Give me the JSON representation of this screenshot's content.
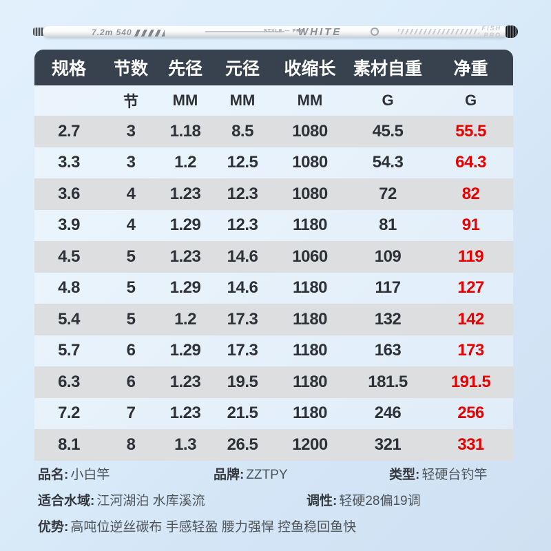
{
  "rod": {
    "left_mark": "7.2m 540",
    "mid_mark": "STYLE — PRO",
    "white_logo": "WHITE",
    "fish": "FISH",
    "pro": "PRO"
  },
  "table": {
    "headers": [
      "规格",
      "节数",
      "先径",
      "元径",
      "收缩长",
      "素材自重",
      "净重"
    ],
    "units": [
      "",
      "节",
      "MM",
      "MM",
      "MM",
      "G",
      "G"
    ],
    "rows": [
      [
        "2.7",
        "3",
        "1.18",
        "8.5",
        "1080",
        "45.5",
        "55.5"
      ],
      [
        "3.3",
        "3",
        "1.2",
        "12.5",
        "1080",
        "54.3",
        "64.3"
      ],
      [
        "3.6",
        "4",
        "1.23",
        "12.3",
        "1080",
        "72",
        "82"
      ],
      [
        "3.9",
        "4",
        "1.29",
        "12.3",
        "1180",
        "81",
        "91"
      ],
      [
        "4.5",
        "5",
        "1.23",
        "14.6",
        "1060",
        "109",
        "119"
      ],
      [
        "4.8",
        "5",
        "1.29",
        "14.6",
        "1180",
        "117",
        "127"
      ],
      [
        "5.4",
        "5",
        "1.2",
        "17.3",
        "1180",
        "132",
        "142"
      ],
      [
        "5.7",
        "6",
        "1.29",
        "17.3",
        "1180",
        "163",
        "173"
      ],
      [
        "6.3",
        "6",
        "1.23",
        "19.5",
        "1180",
        "181.5",
        "191.5"
      ],
      [
        "7.2",
        "7",
        "1.23",
        "21.5",
        "1180",
        "246",
        "256"
      ],
      [
        "8.1",
        "8",
        "1.3",
        "26.5",
        "1200",
        "321",
        "331"
      ]
    ]
  },
  "info": {
    "name_label": "品名:",
    "name_value": "小白竿",
    "brand_label": "品牌:",
    "brand_value": "ZZTPY",
    "type_label": "类型:",
    "type_value": "轻硬台钓竿",
    "water_label": "适合水域:",
    "water_value": "江河湖泊 水库溪流",
    "action_label": "调性:",
    "action_value": "轻硬28偏19调",
    "adv_label": "优势:",
    "adv_value": "高吨位逆丝碳布 手感轻盈 腰力强悍 控鱼稳回鱼快"
  },
  "colors": {
    "header_bg": "#37424e",
    "row_alt_bg": "#dcdee0",
    "net_weight_red": "#e60000",
    "text_dark": "#2e3237",
    "page_bg_top": "#e2f0fc",
    "page_bg_bottom": "#cfe0f2"
  }
}
